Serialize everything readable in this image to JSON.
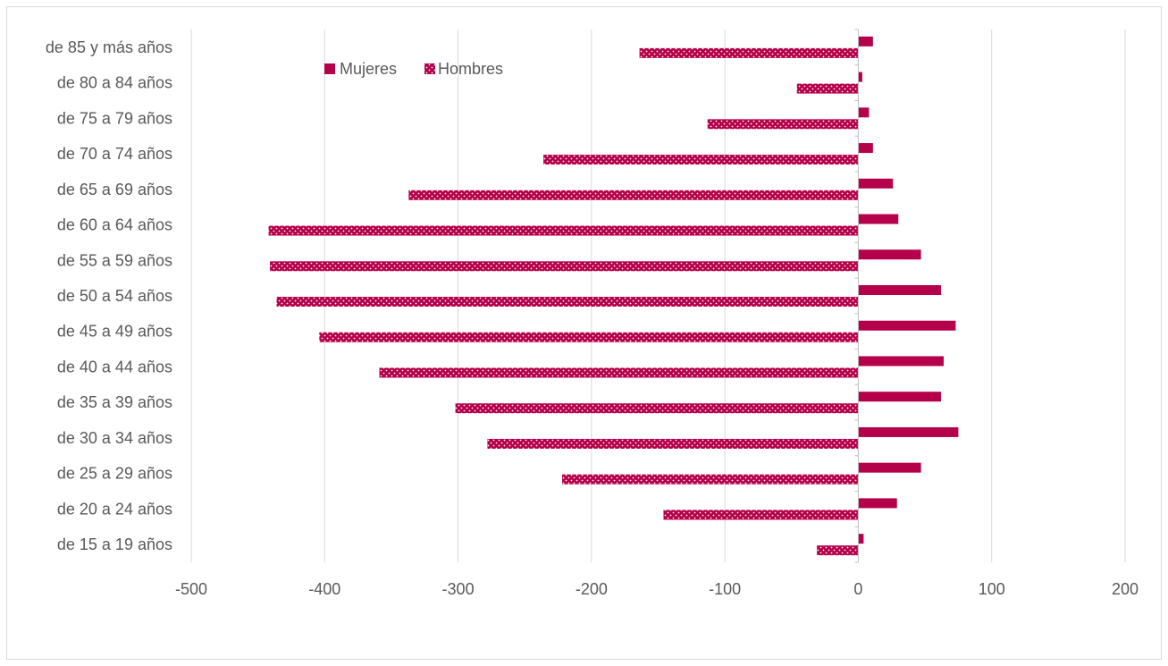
{
  "chart_data": {
    "type": "bar",
    "orientation": "horizontal",
    "categories": [
      "de 15 a 19 años",
      "de 20 a 24 años",
      "de 25 a 29 años",
      "de 30 a 34 años",
      "de 35 a 39 años",
      "de 40 a 44 años",
      "de 45 a 49 años",
      "de 50 a 54 años",
      "de 55 a 59 años",
      "de 60 a 64 años",
      "de 65 a 69 años",
      "de 70 a 74 años",
      "de 75 a 79 años",
      "de 80 a 84 años",
      "de 85 y más años"
    ],
    "series": [
      {
        "name": "Mujeres",
        "pattern": "solid",
        "color": "#b5004a",
        "values": [
          4,
          29,
          47,
          75,
          62,
          64,
          73,
          62,
          47,
          30,
          26,
          11,
          8,
          3,
          11
        ]
      },
      {
        "name": "Hombres",
        "pattern": "dotted",
        "color": "#b5004a",
        "values": [
          -31,
          -146,
          -222,
          -278,
          -302,
          -359,
          -404,
          -436,
          -441,
          -442,
          -337,
          -236,
          -113,
          -46,
          -164
        ]
      }
    ],
    "xlim": [
      -500,
      200
    ],
    "xticks": [
      -500,
      -400,
      -300,
      -200,
      -100,
      0,
      100,
      200
    ],
    "grid": true,
    "legend_position": "top-left",
    "title": "",
    "xlabel": "",
    "ylabel": ""
  }
}
